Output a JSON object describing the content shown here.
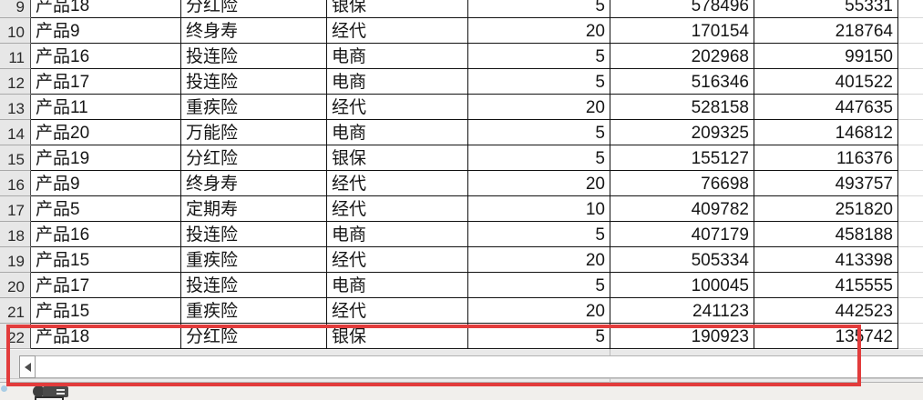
{
  "colors": {
    "grid_border": "#111111",
    "row_header_bg": "#e7e7e7",
    "annotation_red": "#e23c3c",
    "scroll_zone_bg": "#e9e9e9"
  },
  "sheet": {
    "visible_row_range": "9-22",
    "rows": [
      {
        "n": "9",
        "product": "产品18",
        "insurance_type": "分红险",
        "channel": "银保",
        "term": "5",
        "amount_a": "578496",
        "amount_b": "55331"
      },
      {
        "n": "10",
        "product": "产品9",
        "insurance_type": "终身寿",
        "channel": "经代",
        "term": "20",
        "amount_a": "170154",
        "amount_b": "218764"
      },
      {
        "n": "11",
        "product": "产品16",
        "insurance_type": "投连险",
        "channel": "电商",
        "term": "5",
        "amount_a": "202968",
        "amount_b": "99150"
      },
      {
        "n": "12",
        "product": "产品17",
        "insurance_type": "投连险",
        "channel": "电商",
        "term": "5",
        "amount_a": "516346",
        "amount_b": "401522"
      },
      {
        "n": "13",
        "product": "产品11",
        "insurance_type": "重疾险",
        "channel": "经代",
        "term": "20",
        "amount_a": "528158",
        "amount_b": "447635"
      },
      {
        "n": "14",
        "product": "产品20",
        "insurance_type": "万能险",
        "channel": "电商",
        "term": "5",
        "amount_a": "209325",
        "amount_b": "146812"
      },
      {
        "n": "15",
        "product": "产品19",
        "insurance_type": "分红险",
        "channel": "银保",
        "term": "5",
        "amount_a": "155127",
        "amount_b": "116376"
      },
      {
        "n": "16",
        "product": "产品9",
        "insurance_type": "终身寿",
        "channel": "经代",
        "term": "20",
        "amount_a": "76698",
        "amount_b": "493757"
      },
      {
        "n": "17",
        "product": "产品5",
        "insurance_type": "定期寿",
        "channel": "经代",
        "term": "10",
        "amount_a": "409782",
        "amount_b": "251820"
      },
      {
        "n": "18",
        "product": "产品16",
        "insurance_type": "投连险",
        "channel": "电商",
        "term": "5",
        "amount_a": "407179",
        "amount_b": "458188"
      },
      {
        "n": "19",
        "product": "产品15",
        "insurance_type": "重疾险",
        "channel": "经代",
        "term": "20",
        "amount_a": "505334",
        "amount_b": "413398"
      },
      {
        "n": "20",
        "product": "产品17",
        "insurance_type": "投连险",
        "channel": "电商",
        "term": "5",
        "amount_a": "100045",
        "amount_b": "415555"
      },
      {
        "n": "21",
        "product": "产品15",
        "insurance_type": "重疾险",
        "channel": "经代",
        "term": "20",
        "amount_a": "241123",
        "amount_b": "442523"
      },
      {
        "n": "22",
        "product": "产品18",
        "insurance_type": "分红险",
        "channel": "银保",
        "term": "5",
        "amount_a": "190923",
        "amount_b": "135742"
      }
    ]
  },
  "scrollbar": {
    "orientation": "horizontal",
    "left_arrow_glyph": "◀"
  },
  "annotation": {
    "shape": "rectangle",
    "highlights": "row 22 and horizontal scrollbar"
  }
}
